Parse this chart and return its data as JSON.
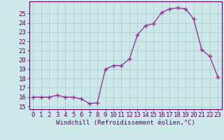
{
  "x": [
    0,
    1,
    2,
    3,
    4,
    5,
    6,
    7,
    8,
    9,
    10,
    11,
    12,
    13,
    14,
    15,
    16,
    17,
    18,
    19,
    20,
    21,
    22,
    23
  ],
  "y": [
    16.0,
    16.0,
    16.0,
    16.2,
    16.0,
    16.0,
    15.8,
    15.3,
    15.4,
    19.0,
    19.4,
    19.4,
    20.1,
    22.7,
    23.7,
    23.9,
    25.1,
    25.5,
    25.6,
    25.5,
    24.4,
    21.1,
    20.4,
    18.2
  ],
  "line_color": "#993399",
  "marker": "+",
  "marker_size": 4,
  "background_color": "#cce8e8",
  "grid_color": "#aacccc",
  "xlabel": "Windchill (Refroidissement éolien,°C)",
  "ylabel_ticks": [
    15,
    16,
    17,
    18,
    19,
    20,
    21,
    22,
    23,
    24,
    25
  ],
  "ylim": [
    14.7,
    26.3
  ],
  "xlim": [
    -0.5,
    23.5
  ],
  "label_color": "#660066",
  "tick_color": "#660066",
  "font_size": 6.5,
  "xlabel_fontsize": 6.5,
  "linewidth": 1.0
}
